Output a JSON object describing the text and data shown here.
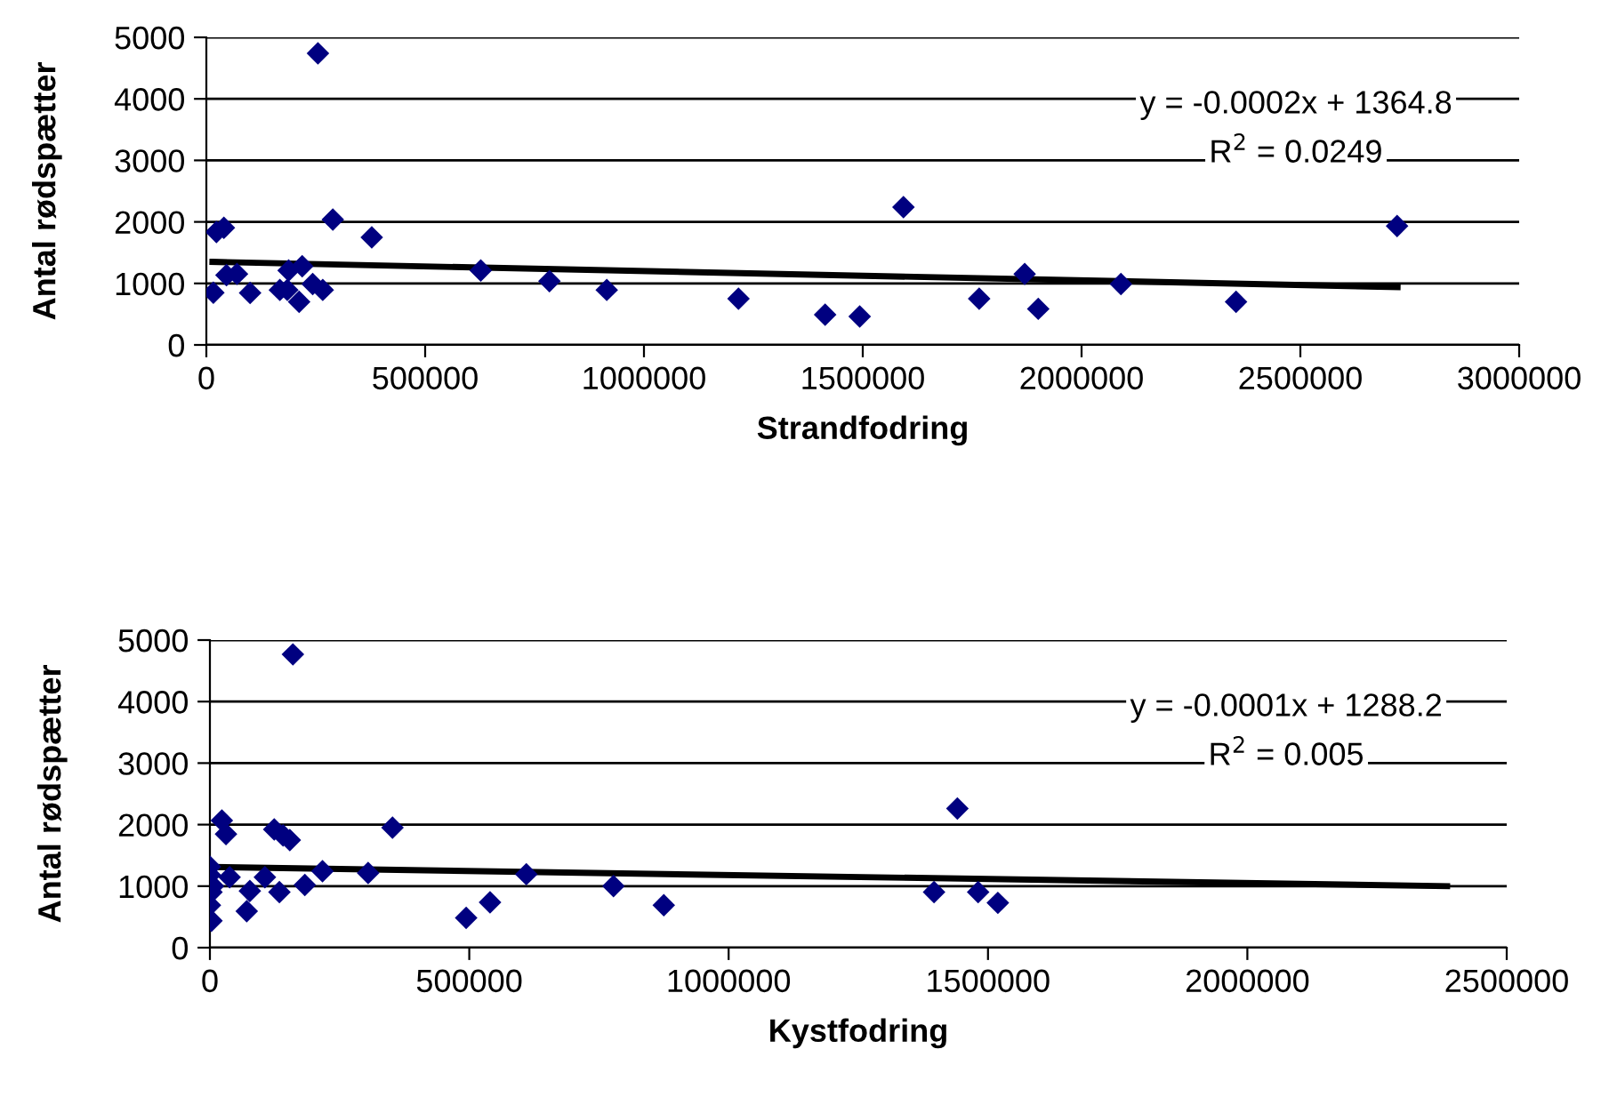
{
  "chart_data": [
    {
      "type": "scatter",
      "xlabel": "Strandfodring",
      "ylabel": "Antal rødspætter",
      "xlim": [
        0,
        3000000
      ],
      "xticks": [
        0,
        500000,
        1000000,
        1500000,
        2000000,
        2500000,
        3000000
      ],
      "ylim": [
        0,
        5000
      ],
      "yticks": [
        0,
        1000,
        2000,
        3000,
        4000,
        5000
      ],
      "grid": "y",
      "legend": false,
      "annotations": [
        "y = -0.0002x + 1364.8",
        "R$^{2}$ = 0.0249"
      ],
      "series": [
        {
          "color": "#000080",
          "marker": "diamond",
          "x": [
            255000,
            16000,
            23000,
            40000,
            46000,
            70000,
            100000,
            168000,
            185000,
            188000,
            219000,
            212000,
            243000,
            266000,
            289000,
            378000,
            627000,
            784000,
            915000,
            1216000,
            1414000,
            1493000,
            1593000,
            1766000,
            1870000,
            1901000,
            2090000,
            2353000,
            2721000
          ],
          "values": [
            4740,
            850,
            1836,
            1904,
            1135,
            1154,
            846,
            894,
            894,
            1211,
            1279,
            702,
            990,
            894,
            2038,
            1750,
            1211,
            1038,
            894,
            750,
            490,
            462,
            2240,
            750,
            1154,
            587,
            990,
            702,
            1933
          ]
        },
        {
          "type": "line",
          "color": "#000000",
          "marker": "none",
          "x": [
            14000,
            2722000
          ],
          "values": [
            1350,
            940
          ]
        }
      ]
    },
    {
      "type": "scatter",
      "xlabel": "Kystfodring",
      "ylabel": "Antal rødspætter",
      "xlim": [
        0,
        2500000
      ],
      "xticks": [
        0,
        500000,
        1000000,
        1500000,
        2000000,
        2500000
      ],
      "ylim": [
        0,
        5000
      ],
      "yticks": [
        0,
        1000,
        2000,
        3000,
        4000,
        5000
      ],
      "grid": "y",
      "legend": false,
      "annotations": [
        "y = -0.0001x + 1288.2",
        "R$^{2}$ = 0.005"
      ],
      "series": [
        {
          "color": "#000080",
          "marker": "diamond",
          "x": [
            160000,
            23000,
            31000,
            124000,
            141000,
            154000,
            352000,
            0,
            0,
            6000,
            3000,
            0,
            3000,
            38000,
            77000,
            71000,
            106000,
            134000,
            183000,
            217000,
            305000,
            494000,
            540000,
            610000,
            778000,
            875000,
            1441000,
            1396000,
            1481000,
            1519000
          ],
          "values": [
            4767,
            2068,
            1845,
            1922,
            1825,
            1748,
            1951,
            1316,
            1180,
            1000,
            903,
            689,
            437,
            1146,
            922,
            592,
            1146,
            903,
            1020,
            1243,
            1214,
            485,
            737,
            1194,
            1000,
            689,
            2262,
            903,
            903,
            728
          ]
        },
        {
          "type": "line",
          "color": "#000000",
          "marker": "none",
          "x": [
            0,
            2385000
          ],
          "values": [
            1311,
            1000
          ]
        }
      ]
    }
  ]
}
